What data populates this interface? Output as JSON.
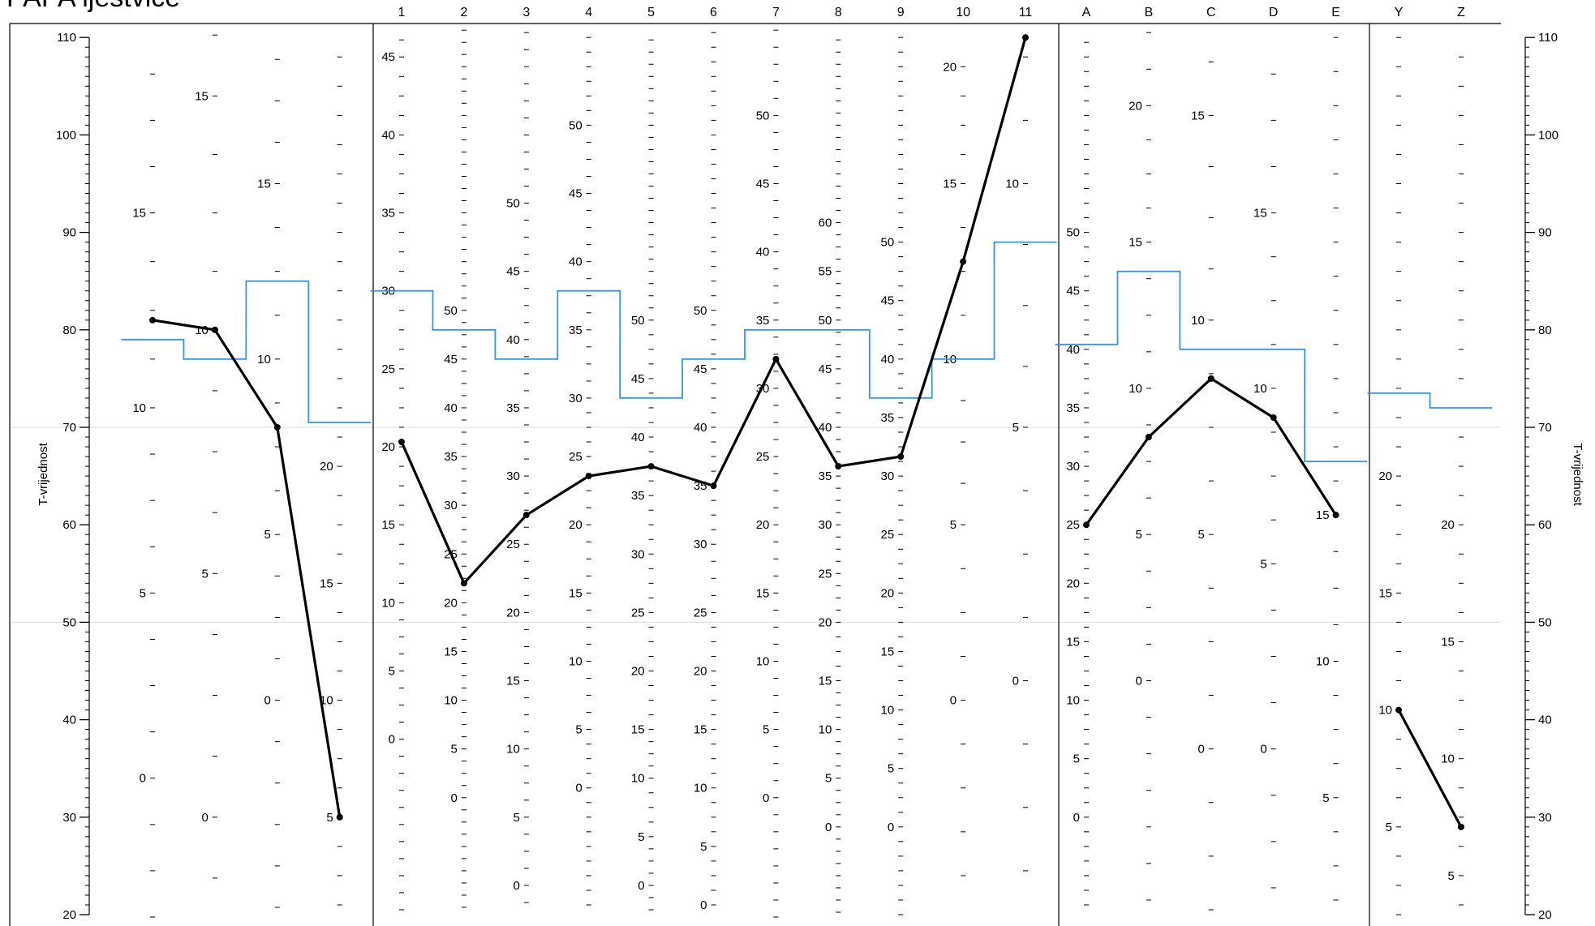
{
  "chart_data": {
    "type": "line",
    "title": "PAPA ljestvice",
    "ylabel": "T-vrijednost",
    "ylim": [
      20,
      110
    ],
    "t_ticks": [
      20,
      30,
      40,
      50,
      60,
      70,
      80,
      90,
      100,
      110
    ],
    "reference_lines": [
      50,
      70
    ],
    "colors": {
      "profile": "#000000",
      "norm": "#3399dd",
      "frame": "#000000",
      "reference": "#dddddd"
    },
    "groups": [
      {
        "scales": [
          {
            "label": "",
            "ticks": [
              [
                "0",
                34
              ],
              [
                "5",
                53
              ],
              [
                "10",
                72
              ],
              [
                "15",
                92
              ]
            ]
          },
          {
            "label": "",
            "ticks": [
              [
                "0",
                30
              ],
              [
                "5",
                55
              ],
              [
                "10",
                80
              ],
              [
                "15",
                104
              ]
            ]
          },
          {
            "label": "",
            "ticks": [
              [
                "0",
                42
              ],
              [
                "5",
                59
              ],
              [
                "10",
                77
              ],
              [
                "15",
                95
              ]
            ]
          },
          {
            "label": "",
            "ticks": [
              [
                "5",
                30
              ],
              [
                "10",
                42
              ],
              [
                "15",
                54
              ],
              [
                "20",
                66
              ]
            ]
          }
        ],
        "profile": [
          81,
          80,
          70,
          30
        ],
        "norm": [
          79,
          77,
          85,
          70.5
        ]
      },
      {
        "scales": [
          {
            "label": "1",
            "ticks": [
              [
                "0",
                38
              ],
              [
                "5",
                45
              ],
              [
                "10",
                52
              ],
              [
                "15",
                60
              ],
              [
                "20",
                68
              ],
              [
                "25",
                76
              ],
              [
                "30",
                84
              ],
              [
                "35",
                92
              ],
              [
                "40",
                100
              ],
              [
                "45",
                108
              ]
            ]
          },
          {
            "label": "2",
            "ticks": [
              [
                "0",
                32
              ],
              [
                "5",
                37
              ],
              [
                "10",
                42
              ],
              [
                "15",
                47
              ],
              [
                "20",
                52
              ],
              [
                "25",
                57
              ],
              [
                "30",
                62
              ],
              [
                "35",
                67
              ],
              [
                "40",
                72
              ],
              [
                "45",
                77
              ],
              [
                "50",
                82
              ]
            ]
          },
          {
            "label": "3",
            "ticks": [
              [
                "0",
                23
              ],
              [
                "5",
                30
              ],
              [
                "10",
                37
              ],
              [
                "15",
                44
              ],
              [
                "20",
                51
              ],
              [
                "25",
                58
              ],
              [
                "30",
                65
              ],
              [
                "35",
                72
              ],
              [
                "40",
                79
              ],
              [
                "45",
                86
              ],
              [
                "50",
                93
              ]
            ]
          },
          {
            "label": "4",
            "ticks": [
              [
                "0",
                33
              ],
              [
                "5",
                39
              ],
              [
                "10",
                46
              ],
              [
                "15",
                53
              ],
              [
                "20",
                60
              ],
              [
                "25",
                67
              ],
              [
                "30",
                73
              ],
              [
                "35",
                80
              ],
              [
                "40",
                87
              ],
              [
                "45",
                94
              ],
              [
                "50",
                101
              ]
            ]
          },
          {
            "label": "5",
            "ticks": [
              [
                "0",
                23
              ],
              [
                "5",
                28
              ],
              [
                "10",
                34
              ],
              [
                "15",
                39
              ],
              [
                "20",
                45
              ],
              [
                "25",
                51
              ],
              [
                "30",
                57
              ],
              [
                "35",
                63
              ],
              [
                "40",
                69
              ],
              [
                "45",
                75
              ],
              [
                "50",
                81
              ]
            ]
          },
          {
            "label": "6",
            "ticks": [
              [
                "0",
                21
              ],
              [
                "5",
                27
              ],
              [
                "10",
                33
              ],
              [
                "15",
                39
              ],
              [
                "20",
                45
              ],
              [
                "25",
                51
              ],
              [
                "30",
                58
              ],
              [
                "35",
                64
              ],
              [
                "40",
                70
              ],
              [
                "45",
                76
              ],
              [
                "50",
                82
              ]
            ]
          },
          {
            "label": "7",
            "ticks": [
              [
                "0",
                32
              ],
              [
                "5",
                39
              ],
              [
                "10",
                46
              ],
              [
                "15",
                53
              ],
              [
                "20",
                60
              ],
              [
                "25",
                67
              ],
              [
                "30",
                74
              ],
              [
                "35",
                81
              ],
              [
                "40",
                88
              ],
              [
                "45",
                95
              ],
              [
                "50",
                102
              ]
            ]
          },
          {
            "label": "8",
            "ticks": [
              [
                "0",
                29
              ],
              [
                "5",
                34
              ],
              [
                "10",
                39
              ],
              [
                "15",
                44
              ],
              [
                "20",
                50
              ],
              [
                "25",
                55
              ],
              [
                "30",
                60
              ],
              [
                "35",
                65
              ],
              [
                "40",
                70
              ],
              [
                "45",
                76
              ],
              [
                "50",
                81
              ],
              [
                "55",
                86
              ],
              [
                "60",
                91
              ]
            ]
          },
          {
            "label": "9",
            "ticks": [
              [
                "0",
                29
              ],
              [
                "5",
                35
              ],
              [
                "10",
                41
              ],
              [
                "15",
                47
              ],
              [
                "20",
                53
              ],
              [
                "25",
                59
              ],
              [
                "30",
                65
              ],
              [
                "35",
                71
              ],
              [
                "40",
                77
              ],
              [
                "45",
                83
              ],
              [
                "50",
                89
              ]
            ]
          },
          {
            "label": "10",
            "ticks": [
              [
                "0",
                42
              ],
              [
                "5",
                60
              ],
              [
                "10",
                77
              ],
              [
                "15",
                95
              ],
              [
                "20",
                107
              ]
            ]
          },
          {
            "label": "11",
            "ticks": [
              [
                "0",
                44
              ],
              [
                "5",
                70
              ],
              [
                "10",
                95
              ]
            ]
          }
        ],
        "profile": [
          68.5,
          54,
          61,
          65,
          66,
          64,
          77,
          66,
          67,
          87,
          110
        ],
        "norm": [
          84,
          80,
          77,
          84,
          73,
          77,
          80,
          80,
          73,
          77,
          89
        ]
      },
      {
        "scales": [
          {
            "label": "A",
            "ticks": [
              [
                "0",
                30
              ],
              [
                "5",
                36
              ],
              [
                "10",
                42
              ],
              [
                "15",
                48
              ],
              [
                "20",
                54
              ],
              [
                "25",
                60
              ],
              [
                "30",
                66
              ],
              [
                "35",
                72
              ],
              [
                "40",
                78
              ],
              [
                "45",
                84
              ],
              [
                "50",
                90
              ]
            ]
          },
          {
            "label": "B",
            "ticks": [
              [
                "0",
                44
              ],
              [
                "5",
                59
              ],
              [
                "10",
                74
              ],
              [
                "15",
                89
              ],
              [
                "20",
                103
              ]
            ]
          },
          {
            "label": "C",
            "ticks": [
              [
                "0",
                37
              ],
              [
                "5",
                59
              ],
              [
                "10",
                81
              ],
              [
                "15",
                102
              ]
            ]
          },
          {
            "label": "D",
            "ticks": [
              [
                "0",
                37
              ],
              [
                "5",
                56
              ],
              [
                "10",
                74
              ],
              [
                "15",
                92
              ]
            ]
          },
          {
            "label": "E",
            "ticks": [
              [
                "5",
                32
              ],
              [
                "10",
                46
              ],
              [
                "15",
                61
              ]
            ]
          }
        ],
        "profile": [
          60,
          69,
          75,
          71,
          61
        ],
        "norm": [
          78.5,
          86,
          78,
          78,
          66.5
        ]
      },
      {
        "scales": [
          {
            "label": "Y",
            "ticks": [
              [
                "5",
                29
              ],
              [
                "10",
                41
              ],
              [
                "15",
                53
              ],
              [
                "20",
                65
              ]
            ]
          },
          {
            "label": "Z",
            "ticks": [
              [
                "5",
                24
              ],
              [
                "10",
                36
              ],
              [
                "15",
                48
              ],
              [
                "20",
                60
              ]
            ]
          }
        ],
        "profile": [
          41,
          29
        ],
        "norm": [
          73.5,
          72
        ]
      }
    ]
  }
}
